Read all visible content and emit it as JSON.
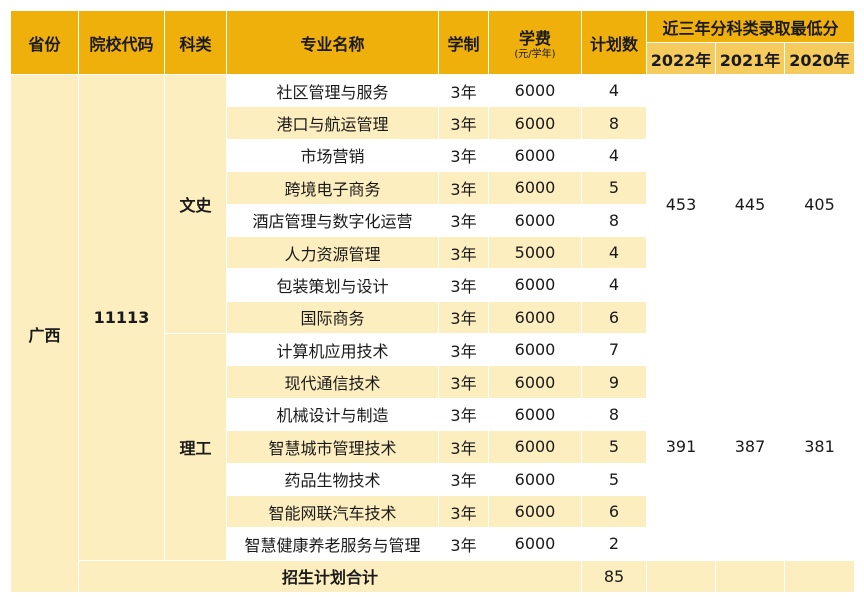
{
  "headers": {
    "province": "省份",
    "code": "院校代码",
    "category": "科类",
    "major": "专业名称",
    "duration": "学制",
    "fee": "学费",
    "fee_unit": "(元/学年)",
    "plan": "计划数",
    "min_score": "近三年分科类录取最低分",
    "years": [
      "2022年",
      "2021年",
      "2020年"
    ]
  },
  "province": "广西",
  "school_code": "11113",
  "groups": [
    {
      "category": "文史",
      "scores": [
        "453",
        "445",
        "405"
      ],
      "rows": [
        {
          "major": "社区管理与服务",
          "duration": "3年",
          "fee": "6000",
          "plan": "4"
        },
        {
          "major": "港口与航运管理",
          "duration": "3年",
          "fee": "6000",
          "plan": "8"
        },
        {
          "major": "市场营销",
          "duration": "3年",
          "fee": "6000",
          "plan": "4"
        },
        {
          "major": "跨境电子商务",
          "duration": "3年",
          "fee": "6000",
          "plan": "5"
        },
        {
          "major": "酒店管理与数字化运营",
          "duration": "3年",
          "fee": "6000",
          "plan": "8"
        },
        {
          "major": "人力资源管理",
          "duration": "3年",
          "fee": "5000",
          "plan": "4"
        },
        {
          "major": "包装策划与设计",
          "duration": "3年",
          "fee": "6000",
          "plan": "4"
        },
        {
          "major": "国际商务",
          "duration": "3年",
          "fee": "6000",
          "plan": "6"
        }
      ]
    },
    {
      "category": "理工",
      "scores": [
        "391",
        "387",
        "381"
      ],
      "rows": [
        {
          "major": "计算机应用技术",
          "duration": "3年",
          "fee": "6000",
          "plan": "7"
        },
        {
          "major": "现代通信技术",
          "duration": "3年",
          "fee": "6000",
          "plan": "9"
        },
        {
          "major": "机械设计与制造",
          "duration": "3年",
          "fee": "6000",
          "plan": "8"
        },
        {
          "major": "智慧城市管理技术",
          "duration": "3年",
          "fee": "6000",
          "plan": "5"
        },
        {
          "major": "药品生物技术",
          "duration": "3年",
          "fee": "6000",
          "plan": "5"
        },
        {
          "major": "智能网联汽车技术",
          "duration": "3年",
          "fee": "6000",
          "plan": "6"
        },
        {
          "major": "智慧健康养老服务与管理",
          "duration": "3年",
          "fee": "6000",
          "plan": "2"
        }
      ]
    }
  ],
  "total": {
    "label": "招生计划合计",
    "value": "85"
  }
}
